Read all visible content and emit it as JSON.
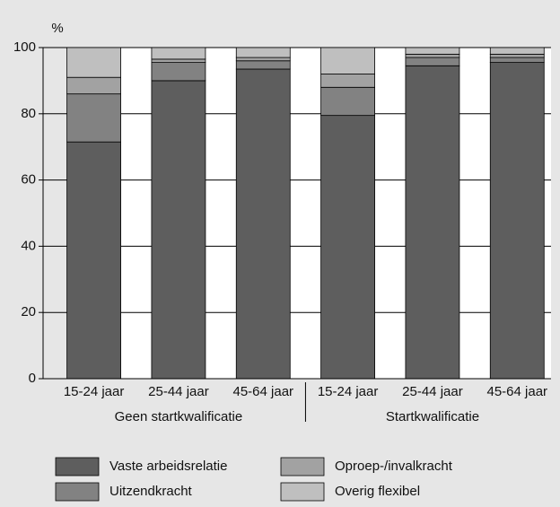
{
  "chart_data": {
    "type": "stacked_bar",
    "y_label": "%",
    "categories": [
      "15-24 jaar",
      "25-44 jaar",
      "45-64 jaar",
      "15-24 jaar",
      "25-44 jaar",
      "45-64 jaar"
    ],
    "groups": [
      "Geen startkwalificatie",
      "Startkwalificatie"
    ],
    "series": [
      {
        "name": "Vaste arbeidsrelatie",
        "color": "#5e5e5e",
        "values": [
          71.5,
          90,
          93.5,
          79.5,
          94.5,
          95.5
        ]
      },
      {
        "name": "Uitzendkracht",
        "color": "#828282",
        "values": [
          14.5,
          5.5,
          2.5,
          8.5,
          2.5,
          1.5
        ]
      },
      {
        "name": "Oproep-/invalkracht",
        "color": "#a2a2a2",
        "values": [
          5,
          1,
          1,
          4,
          1,
          1
        ]
      },
      {
        "name": "Overig flexibel",
        "color": "#bfbfbf",
        "values": [
          9,
          3.5,
          3,
          8,
          2,
          2
        ]
      }
    ],
    "ylim": [
      0,
      100
    ],
    "yticks": [
      0,
      20,
      40,
      60,
      80,
      100
    ],
    "grid": true
  }
}
